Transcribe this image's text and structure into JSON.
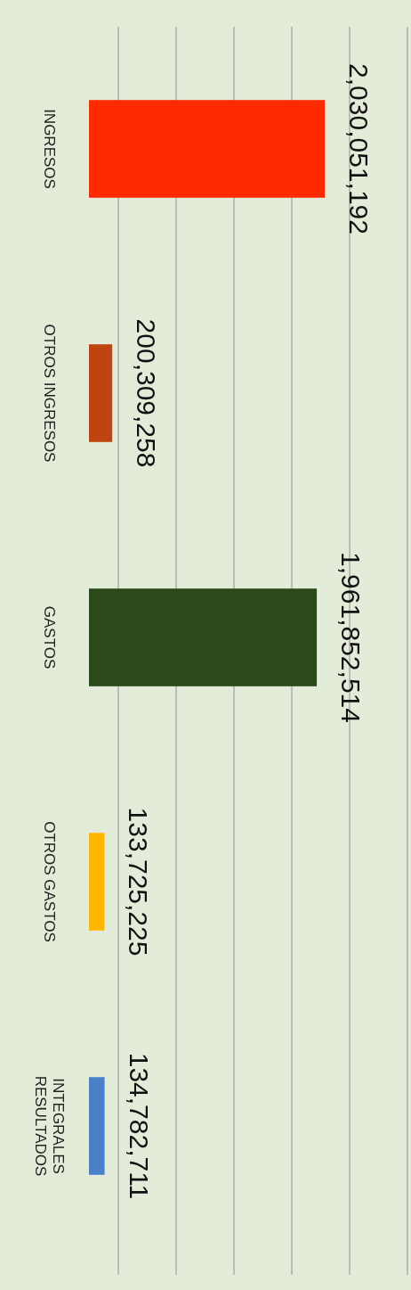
{
  "chart_data": {
    "type": "bar",
    "orientation": "horizontal",
    "categories": [
      "INGRESOS",
      "OTROS INGRESOS",
      "GASTOS",
      "OTROS GASTOS",
      "RESULTADOS INTEGRALES"
    ],
    "values": [
      2030051192,
      200309258,
      1961852514,
      133725225,
      134782711
    ],
    "value_labels": [
      "2,030,051,192",
      "200,309,258",
      "1,961,852,514",
      "133,725,225",
      "134,782,711"
    ],
    "colors": [
      "#ff2a00",
      "#c0440f",
      "#2a4a1a",
      "#ffb700",
      "#4a80c8"
    ],
    "grid": true
  }
}
